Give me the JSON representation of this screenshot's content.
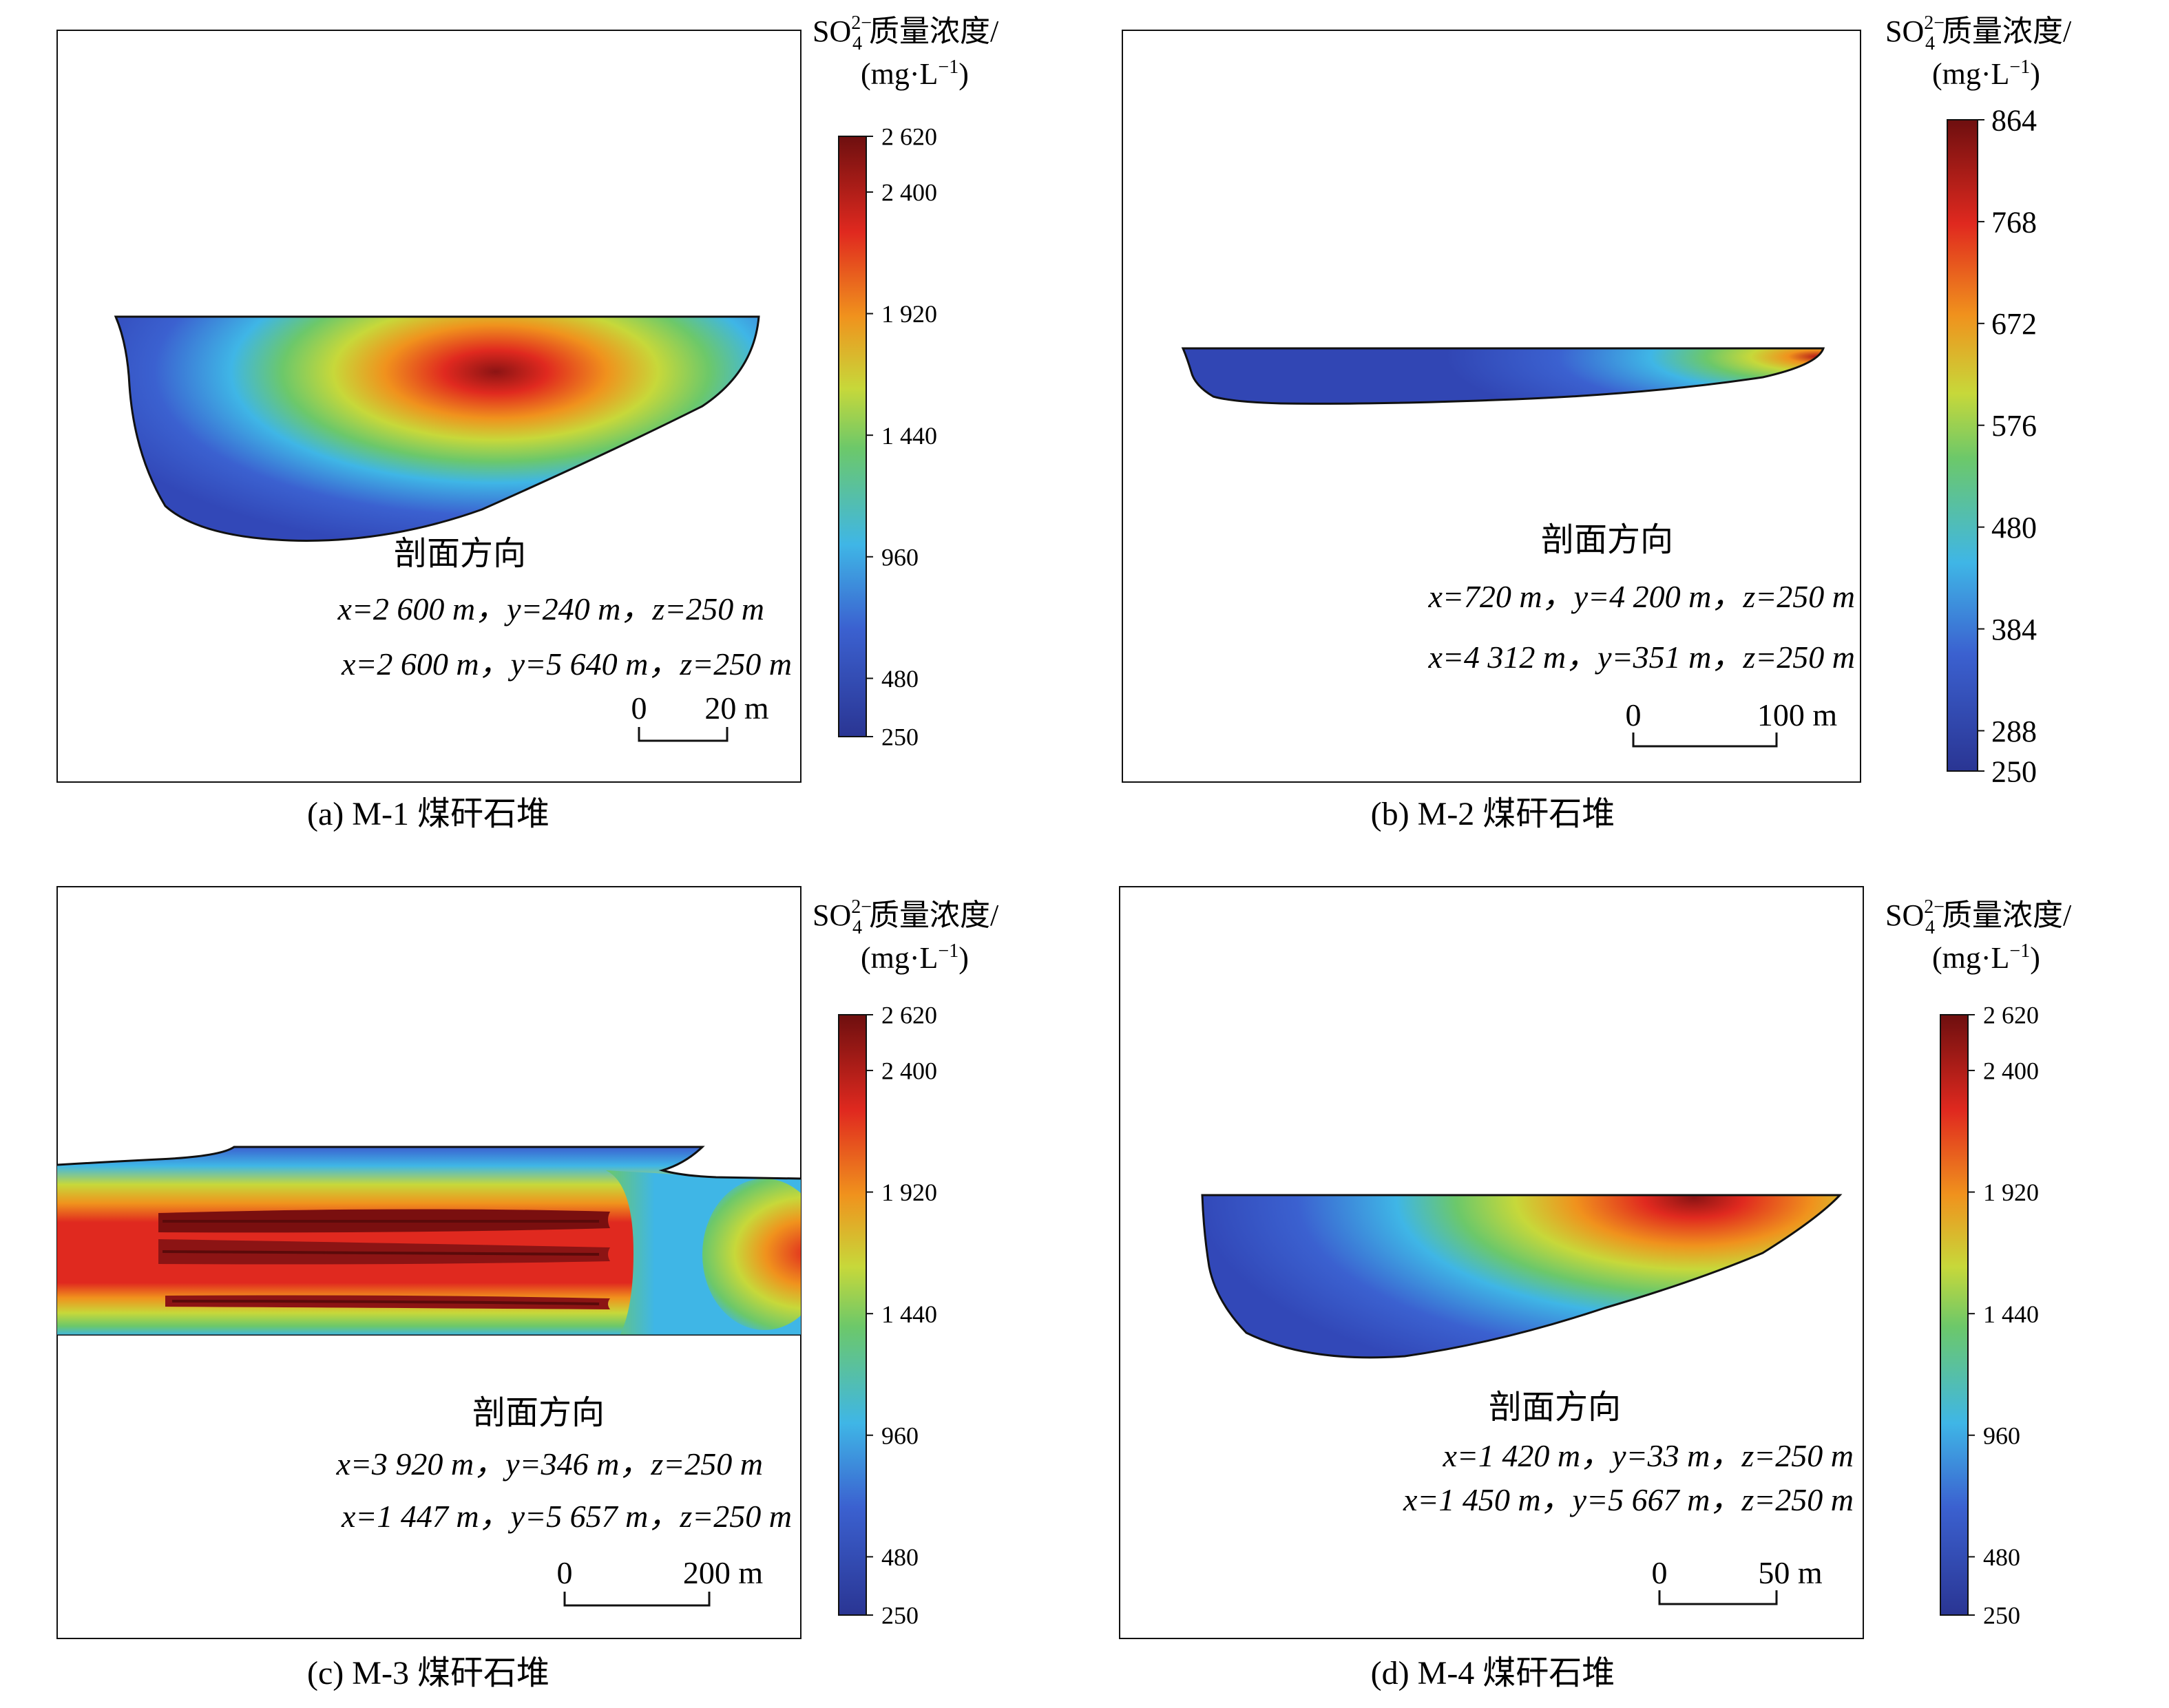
{
  "colormap": {
    "stops": [
      {
        "t": 0.0,
        "color": "#2a3593"
      },
      {
        "t": 0.18,
        "color": "#3b61d0"
      },
      {
        "t": 0.32,
        "color": "#3fb6e6"
      },
      {
        "t": 0.48,
        "color": "#6cc86a"
      },
      {
        "t": 0.58,
        "color": "#c7d83a"
      },
      {
        "t": 0.7,
        "color": "#f0921d"
      },
      {
        "t": 0.84,
        "color": "#e0291f"
      },
      {
        "t": 1.0,
        "color": "#6e0f0f"
      }
    ]
  },
  "panels": [
    {
      "id": "a",
      "caption": "(a) M-1 煤矸石堆",
      "colorbar": {
        "title_line1_prefix": "SO",
        "title_sub": "4",
        "title_sup": "2−",
        "title_line1_suffix": "质量浓度/",
        "title_line2": "(mg·L",
        "title_line2_sup": "−1",
        "title_line2_end": ")",
        "min": 250,
        "max": 2620,
        "ticks": [
          {
            "value": 2620,
            "label": "2 620"
          },
          {
            "value": 2400,
            "label": "2 400"
          },
          {
            "value": 1920,
            "label": "1 920"
          },
          {
            "value": 1440,
            "label": "1 440"
          },
          {
            "value": 960,
            "label": "960"
          },
          {
            "value": 480,
            "label": "480"
          },
          {
            "value": 250,
            "label": "250"
          }
        ]
      },
      "direction": {
        "heading": "剖面方向",
        "line1": "x=2 600 m，y=240 m，z=250 m",
        "line2": "x=2 600 m，y=5 640 m，z=250 m"
      },
      "scale_bar": {
        "start": "0",
        "end": "20 m"
      }
    },
    {
      "id": "b",
      "caption": "(b) M-2 煤矸石堆",
      "colorbar": {
        "title_line1_prefix": "SO",
        "title_sub": "4",
        "title_sup": "2−",
        "title_line1_suffix": "质量浓度/",
        "title_line2": "(mg·L",
        "title_line2_sup": "−1",
        "title_line2_end": ")",
        "min": 250,
        "max": 864,
        "ticks": [
          {
            "value": 864,
            "label": "864"
          },
          {
            "value": 768,
            "label": "768"
          },
          {
            "value": 672,
            "label": "672"
          },
          {
            "value": 576,
            "label": "576"
          },
          {
            "value": 480,
            "label": "480"
          },
          {
            "value": 384,
            "label": "384"
          },
          {
            "value": 288,
            "label": "288"
          },
          {
            "value": 250,
            "label": "250"
          }
        ]
      },
      "direction": {
        "heading": "剖面方向",
        "line1": "x=720 m，y=4 200 m，z=250 m",
        "line2": "x=4 312 m，y=351 m，z=250 m"
      },
      "scale_bar": {
        "start": "0",
        "end": "100 m"
      }
    },
    {
      "id": "c",
      "caption": "(c) M-3 煤矸石堆",
      "colorbar": {
        "title_line1_prefix": "SO",
        "title_sub": "4",
        "title_sup": "2−",
        "title_line1_suffix": "质量浓度/",
        "title_line2": "(mg·L",
        "title_line2_sup": "−1",
        "title_line2_end": ")",
        "min": 250,
        "max": 2620,
        "ticks": [
          {
            "value": 2620,
            "label": "2 620"
          },
          {
            "value": 2400,
            "label": "2 400"
          },
          {
            "value": 1920,
            "label": "1 920"
          },
          {
            "value": 1440,
            "label": "1 440"
          },
          {
            "value": 960,
            "label": "960"
          },
          {
            "value": 480,
            "label": "480"
          },
          {
            "value": 250,
            "label": "250"
          }
        ]
      },
      "direction": {
        "heading": "剖面方向",
        "line1": "x=3 920 m，y=346 m，z=250 m",
        "line2": "x=1 447 m，y=5 657 m，z=250 m"
      },
      "scale_bar": {
        "start": "0",
        "end": "200 m"
      }
    },
    {
      "id": "d",
      "caption": "(d) M-4 煤矸石堆",
      "colorbar": {
        "title_line1_prefix": "SO",
        "title_sub": "4",
        "title_sup": "2−",
        "title_line1_suffix": "质量浓度/",
        "title_line2": "(mg·L",
        "title_line2_sup": "−1",
        "title_line2_end": ")",
        "min": 250,
        "max": 2620,
        "ticks": [
          {
            "value": 2620,
            "label": "2 620"
          },
          {
            "value": 2400,
            "label": "2 400"
          },
          {
            "value": 1920,
            "label": "1 920"
          },
          {
            "value": 1440,
            "label": "1 440"
          },
          {
            "value": 960,
            "label": "960"
          },
          {
            "value": 480,
            "label": "480"
          },
          {
            "value": 250,
            "label": "250"
          }
        ]
      },
      "direction": {
        "heading": "剖面方向",
        "line1": "x=1 420 m，y=33 m，z=250 m",
        "line2": "x=1 450 m，y=5 667 m，z=250 m"
      },
      "scale_bar": {
        "start": "0",
        "end": "50 m"
      }
    }
  ]
}
